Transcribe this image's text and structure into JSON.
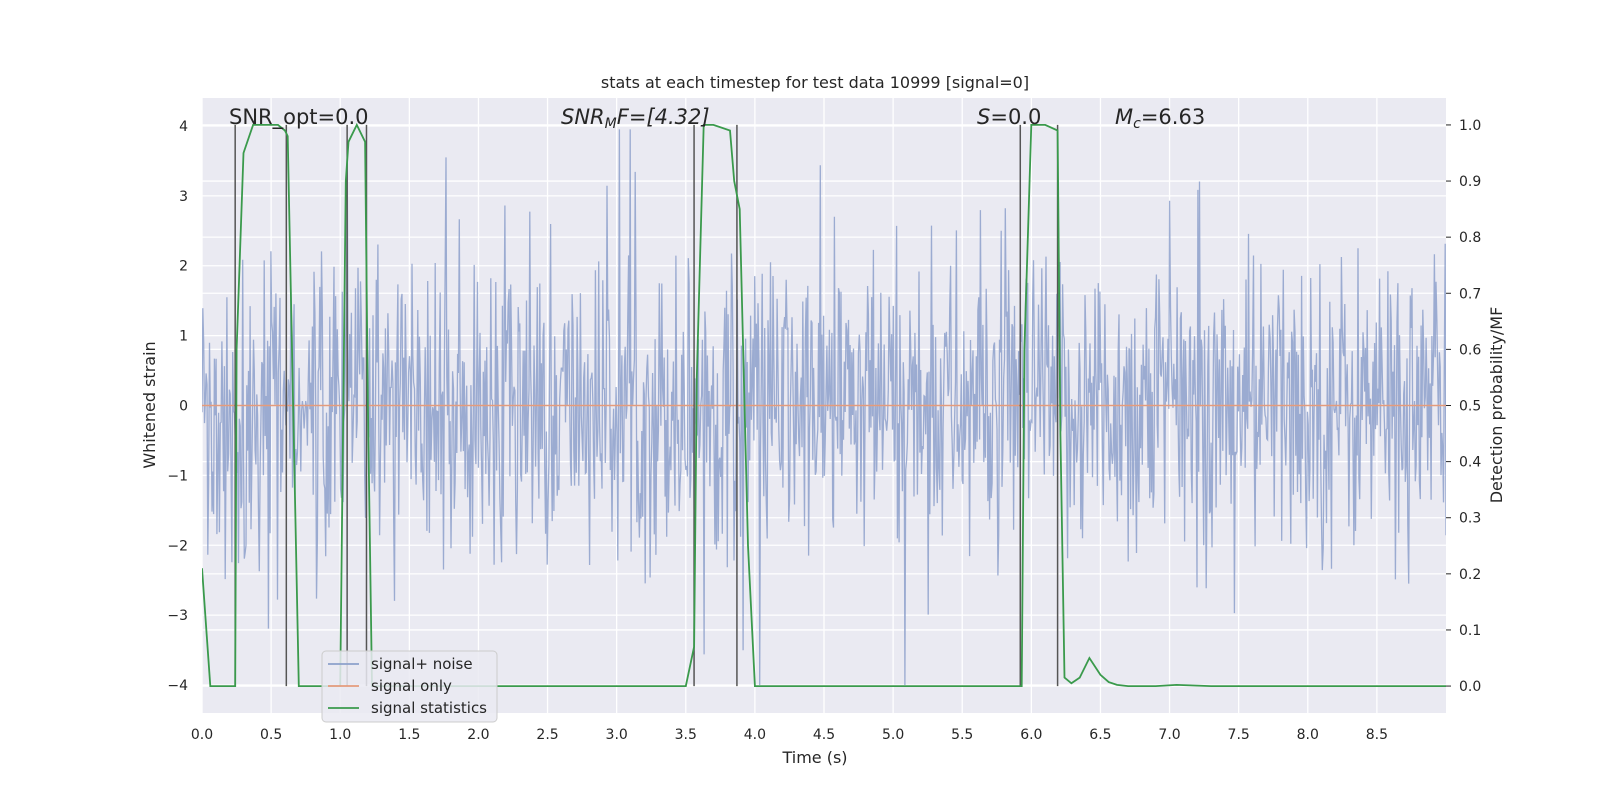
{
  "chart_data": {
    "type": "line",
    "title": "stats at each timestep for test data 10999 [signal=0]",
    "xlabel": "Time (s)",
    "ylabel": "Whitened strain",
    "y2label": "Detection probability/MF",
    "xlim": [
      0.0,
      9.0
    ],
    "ylim": [
      -4.4,
      4.4
    ],
    "y2lim": [
      -0.048,
      1.048
    ],
    "xticks": [
      0.0,
      0.5,
      1.0,
      1.5,
      2.0,
      2.5,
      3.0,
      3.5,
      4.0,
      4.5,
      5.0,
      5.5,
      6.0,
      6.5,
      7.0,
      7.5,
      8.0,
      8.5
    ],
    "xtick_labels": [
      "0.0",
      "0.5",
      "1.0",
      "1.5",
      "2.0",
      "2.5",
      "3.0",
      "3.5",
      "4.0",
      "4.5",
      "5.0",
      "5.5",
      "6.0",
      "6.5",
      "7.0",
      "7.5",
      "8.0",
      "8.5"
    ],
    "yticks": [
      -4,
      -3,
      -2,
      -1,
      0,
      1,
      2,
      3,
      4
    ],
    "ytick_labels": [
      "−4",
      "−3",
      "−2",
      "−1",
      "0",
      "1",
      "2",
      "3",
      "4"
    ],
    "y2ticks": [
      0.0,
      0.1,
      0.2,
      0.3,
      0.4,
      0.5,
      0.6,
      0.7,
      0.8,
      0.9,
      1.0
    ],
    "y2tick_labels": [
      "0.0",
      "0.1",
      "0.2",
      "0.3",
      "0.4",
      "0.5",
      "0.6",
      "0.7",
      "0.8",
      "0.9",
      "1.0"
    ],
    "annotations": {
      "snr_opt": "SNR_opt=0.0",
      "snr_mf_prefix": "SNR",
      "snr_mf_sub": "M",
      "snr_mf_suffix": "F=[4.32]",
      "s_italic": "S",
      "s_suffix": "=0.0",
      "mc_prefix": "M",
      "mc_sub": "c",
      "mc_suffix": "=6.63"
    },
    "legend": {
      "location": "lower-left",
      "entries": [
        "signal+ noise",
        "signal only",
        "signal statistics"
      ]
    },
    "colors": {
      "noise": "#8da0cb",
      "signal_only": "#e49b7c",
      "statistics": "#3a9a4c",
      "vlines": "#555555",
      "axes_bg": "#eaeaf2",
      "grid": "#ffffff"
    },
    "series": [
      {
        "name": "signal+ noise",
        "axis": "left",
        "description": "whitened strain noise samples, amplitude roughly within ±2.5 with spikes to ±4",
        "x_range": [
          0.0,
          9.0
        ],
        "sample_count": 1500
      },
      {
        "name": "signal only",
        "axis": "left",
        "x": [
          0.0,
          9.0
        ],
        "y": [
          0.0,
          0.0
        ]
      },
      {
        "name": "signal statistics",
        "axis": "right",
        "x": [
          0.0,
          0.06,
          0.24,
          0.25,
          0.3,
          0.37,
          0.55,
          0.6,
          0.62,
          0.7,
          1.0,
          1.04,
          1.06,
          1.12,
          1.18,
          1.2,
          1.23,
          1.3,
          3.5,
          3.56,
          3.58,
          3.63,
          3.7,
          3.82,
          3.85,
          3.89,
          3.95,
          4.0,
          5.9,
          5.93,
          5.95,
          6.0,
          6.1,
          6.19,
          6.21,
          6.24,
          6.29,
          6.35,
          6.42,
          6.5,
          6.56,
          6.62,
          6.7,
          6.9,
          7.05,
          7.3,
          7.6,
          8.0,
          9.0
        ],
        "y": [
          0.21,
          0.0,
          0.0,
          0.6,
          0.95,
          1.0,
          1.0,
          0.99,
          0.98,
          0.0,
          0.0,
          0.9,
          0.97,
          1.0,
          0.97,
          0.5,
          0.0,
          0.0,
          0.0,
          0.07,
          0.55,
          1.0,
          1.0,
          0.99,
          0.9,
          0.85,
          0.25,
          0.0,
          0.0,
          0.0,
          0.6,
          1.0,
          1.0,
          0.99,
          0.45,
          0.015,
          0.005,
          0.015,
          0.05,
          0.02,
          0.007,
          0.002,
          0.0,
          0.0,
          0.002,
          0.0,
          0.0,
          0.0,
          0.0
        ]
      }
    ],
    "vertical_lines_x": [
      0.24,
      0.61,
      1.05,
      1.19,
      3.56,
      3.87,
      5.92,
      6.19
    ]
  }
}
